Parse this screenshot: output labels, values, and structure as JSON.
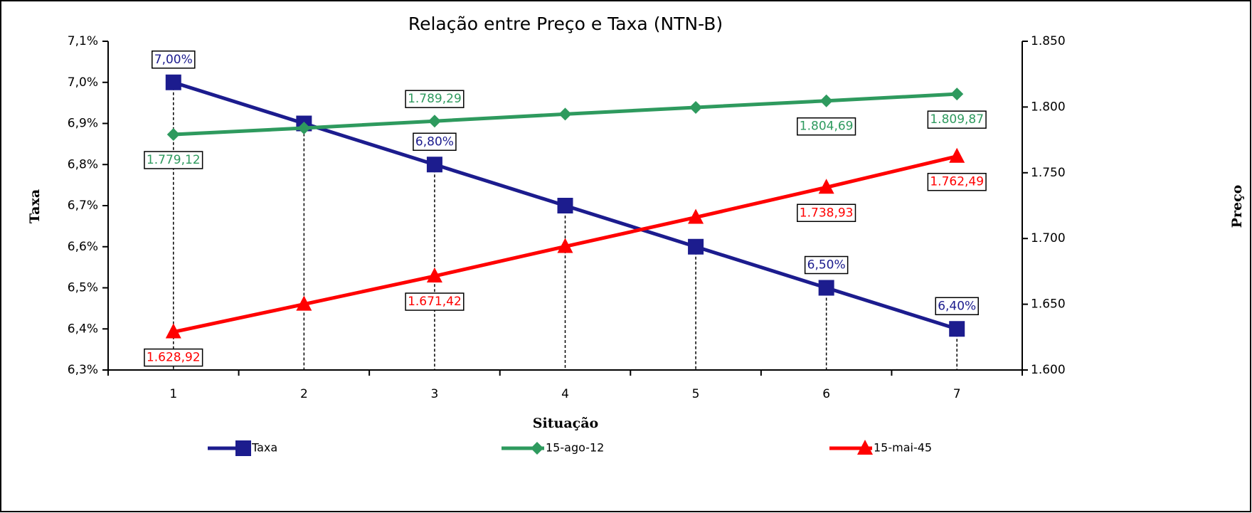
{
  "chart_data": {
    "type": "line",
    "title": "Relação entre Preço e Taxa (NTN-B)",
    "x_label": "Situação",
    "y_label": "Taxa",
    "y2_label": "Preço",
    "categories": [
      "1",
      "2",
      "3",
      "4",
      "5",
      "6",
      "7"
    ],
    "ylim": [
      6.3,
      7.1
    ],
    "yticks": [
      {
        "value": 6.3,
        "label": "6,3%"
      },
      {
        "value": 6.4,
        "label": "6,4%"
      },
      {
        "value": 6.5,
        "label": "6,5%"
      },
      {
        "value": 6.6,
        "label": "6,6%"
      },
      {
        "value": 6.7,
        "label": "6,7%"
      },
      {
        "value": 6.8,
        "label": "6,8%"
      },
      {
        "value": 6.9,
        "label": "6,9%"
      },
      {
        "value": 7.0,
        "label": "7,0%"
      },
      {
        "value": 7.1,
        "label": "7,1%"
      }
    ],
    "y2lim": [
      1600,
      1850
    ],
    "y2ticks": [
      {
        "value": 1600,
        "label": "1.600"
      },
      {
        "value": 1650,
        "label": "1.650"
      },
      {
        "value": 1700,
        "label": "1.700"
      },
      {
        "value": 1750,
        "label": "1.750"
      },
      {
        "value": 1800,
        "label": "1.800"
      },
      {
        "value": 1850,
        "label": "1.850"
      }
    ],
    "legend": "bottom",
    "series": [
      {
        "name": "Taxa",
        "color": "#1c1c8e",
        "marker": "square",
        "axis": "y",
        "values": [
          7.0,
          6.9,
          6.8,
          6.7,
          6.6,
          6.5,
          6.4
        ],
        "value_labels": [
          "7,00%",
          null,
          "6,80%",
          null,
          null,
          "6,50%",
          "6,40%"
        ]
      },
      {
        "name": "15-ago-12",
        "color": "#2e9a5e",
        "marker": "diamond",
        "axis": "y2",
        "values": [
          1779.12,
          1784.0,
          1789.29,
          1794.6,
          1799.7,
          1804.69,
          1809.87
        ],
        "value_labels": [
          "1.779,12",
          null,
          "1.789,29",
          null,
          null,
          "1.804,69",
          "1.809,87"
        ]
      },
      {
        "name": "15-mai-45",
        "color": "#ff0000",
        "marker": "triangle",
        "axis": "y2",
        "values": [
          1628.92,
          1650.0,
          1671.42,
          1693.9,
          1716.1,
          1738.93,
          1762.49
        ],
        "value_labels": [
          "1.628,92",
          null,
          "1.671,42",
          null,
          null,
          "1.738,93",
          "1.762,49"
        ]
      }
    ]
  }
}
